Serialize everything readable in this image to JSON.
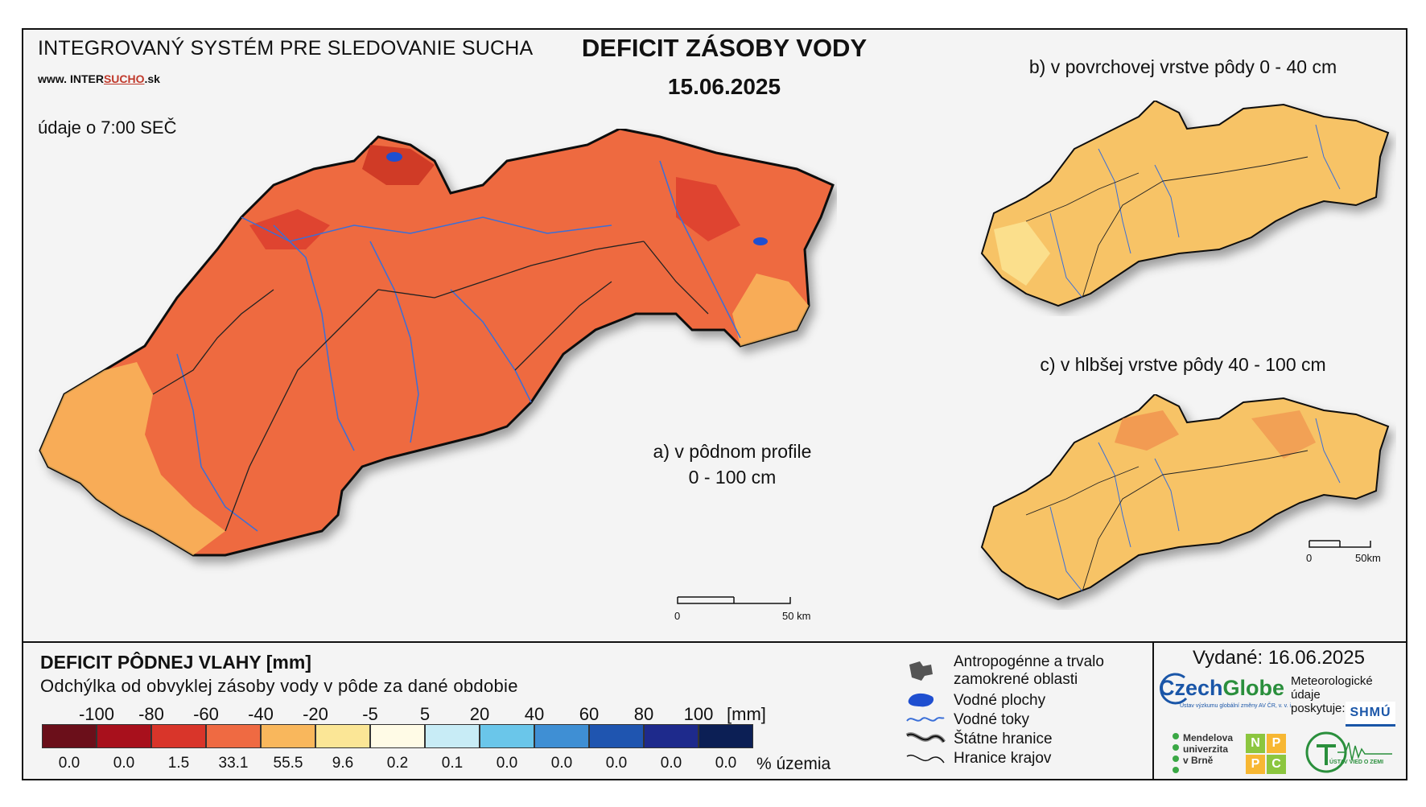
{
  "header": {
    "system_title": "INTEGROVANÝ SYSTÉM PRE SLEDOVANIE SUCHA",
    "web_prefix": "www.",
    "web_inter": "INTER",
    "web_sucho": "SUCHO",
    "web_suffix": ".sk",
    "time_note": "údaje o 7:00 SEČ",
    "main_title": "DEFICIT ZÁSOBY VODY",
    "main_date": "15.06.2025"
  },
  "maps": {
    "a_label_line1": "a) v pôdnom profile",
    "a_label_line2": "0 - 100 cm",
    "b_label": "b) v povrchovej vrstve pôdy 0 - 40 cm",
    "c_label": "c) v hlbšej vrstve pôdy 40 - 100 cm",
    "scale_main_zero": "0",
    "scale_main_end": "50 km",
    "scale_small_zero": "0",
    "scale_small_end": "50km"
  },
  "legend": {
    "title": "DEFICIT PÔDNEJ VLAHY [mm]",
    "subtitle": "Odchýlka od obvyklej zásoby vody v pôde za dané obdobie",
    "ticks": [
      "-100",
      "-80",
      "-60",
      "-40",
      "-20",
      "-5",
      "5",
      "20",
      "40",
      "60",
      "80",
      "100"
    ],
    "mm_unit": "[mm]",
    "classes": [
      {
        "color": "#6b0f1a",
        "pct": "0.0"
      },
      {
        "color": "#a8101c",
        "pct": "0.0"
      },
      {
        "color": "#d9352a",
        "pct": "1.5"
      },
      {
        "color": "#ef6a42",
        "pct": "33.1"
      },
      {
        "color": "#f9b75c",
        "pct": "55.5"
      },
      {
        "color": "#fbe696",
        "pct": "9.6"
      },
      {
        "color": "#fffbe6",
        "pct": "0.2"
      },
      {
        "color": "#c8ecf6",
        "pct": "0.1"
      },
      {
        "color": "#6ac6ea",
        "pct": "0.0"
      },
      {
        "color": "#3f8fd4",
        "pct": "0.0"
      },
      {
        "color": "#1f55b0",
        "pct": "0.0"
      },
      {
        "color": "#1e2a8c",
        "pct": "0.0"
      },
      {
        "color": "#0c1f55",
        "pct": "0.0"
      }
    ],
    "pct_unit": "% územia"
  },
  "symbols": {
    "anthropogenic_1": "Antropogénne a trvalo",
    "anthropogenic_2": "zamokrené oblasti",
    "water_bodies": "Vodné plochy",
    "rivers": "Vodné toky",
    "state_border": "Štátne hranice",
    "region_border": "Hranice krajov"
  },
  "issued": {
    "text": "Vydané: 16.06.2025",
    "czechglobe_a": "Czech",
    "czechglobe_b": "Globe",
    "czechglobe_sub": "Ústav výzkumu globální změny AV ČR, v. v. i.",
    "meteo_1": "Meteorologické",
    "meteo_2": "údaje",
    "meteo_3": "poskytuje:",
    "shmu": "SHMÚ",
    "mendel_1": "Mendelova",
    "mendel_2": "univerzita",
    "mendel_3": "v Brně",
    "nppc": [
      "N",
      "P",
      "P",
      "C"
    ],
    "uvz": "ÚSTAV VIED O ZEMI"
  },
  "colors": {
    "map_main_fill": "#ee6a40",
    "map_small_fill": "#f7c366",
    "river": "#3a6fd8"
  }
}
